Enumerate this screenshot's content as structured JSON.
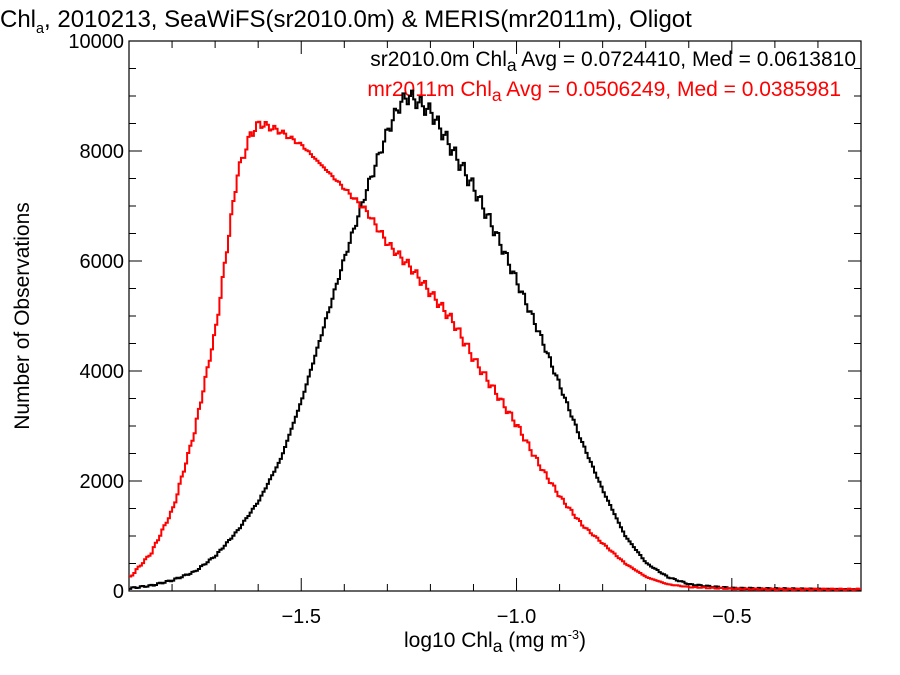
{
  "title": {
    "prefix": "Chl",
    "sub": "a",
    "rest": ", 2010213, SeaWiFS(sr2010.0m) & MERIS(mr2011m), Oligot"
  },
  "axes": {
    "ylabel": "Number of Observations",
    "xlabel_prefix": "log10 Chl",
    "xlabel_sub": "a",
    "xlabel_units_pre": " (mg m",
    "xlabel_units_sup": "-3",
    "xlabel_units_post": ")"
  },
  "legend": [
    {
      "pre": "sr2010.0m Chl",
      "sub": "a",
      "post": " Avg = 0.0724410, Med = 0.0613810",
      "color": "#000000"
    },
    {
      "pre": "mr2011m Chl",
      "sub": "a",
      "post": " Avg = 0.0506249, Med = 0.0385981",
      "color": "#ff0000"
    }
  ],
  "chart_data": {
    "type": "line",
    "style": "histogram-step",
    "xlim": [
      -1.9,
      -0.2
    ],
    "ylim": [
      0,
      10000
    ],
    "xticks": [
      -1.5,
      -1.0,
      -0.5
    ],
    "xtick_labels": [
      "−1.5",
      "−1.0",
      "−0.5"
    ],
    "yticks": [
      0,
      2000,
      4000,
      6000,
      8000,
      10000
    ],
    "ytick_labels": [
      "0",
      "2000",
      "4000",
      "6000",
      "8000",
      "10000"
    ],
    "series": [
      {
        "name": "sr2010.0m",
        "color": "#000000",
        "x": [
          -1.9,
          -1.85,
          -1.8,
          -1.75,
          -1.7,
          -1.65,
          -1.6,
          -1.55,
          -1.5,
          -1.45,
          -1.4,
          -1.35,
          -1.3,
          -1.27,
          -1.25,
          -1.2,
          -1.15,
          -1.1,
          -1.05,
          -1.0,
          -0.95,
          -0.9,
          -0.85,
          -0.8,
          -0.75,
          -0.7,
          -0.65,
          -0.6,
          -0.55,
          -0.5,
          -0.4,
          -0.3,
          -0.2
        ],
        "y": [
          50,
          100,
          200,
          350,
          650,
          1100,
          1650,
          2400,
          3500,
          4800,
          6100,
          7300,
          8400,
          8900,
          9000,
          8700,
          8000,
          7300,
          6500,
          5600,
          4700,
          3700,
          2700,
          1800,
          1000,
          500,
          250,
          120,
          80,
          50,
          40,
          30,
          20
        ]
      },
      {
        "name": "mr2011m",
        "color": "#ff0000",
        "x": [
          -1.9,
          -1.85,
          -1.8,
          -1.75,
          -1.7,
          -1.67,
          -1.65,
          -1.62,
          -1.6,
          -1.58,
          -1.55,
          -1.5,
          -1.45,
          -1.4,
          -1.35,
          -1.3,
          -1.25,
          -1.2,
          -1.15,
          -1.1,
          -1.05,
          -1.0,
          -0.95,
          -0.9,
          -0.85,
          -0.8,
          -0.75,
          -0.7,
          -0.65,
          -0.6,
          -0.5,
          -0.4,
          -0.3,
          -0.2
        ],
        "y": [
          250,
          700,
          1500,
          2900,
          4800,
          6500,
          7600,
          8300,
          8500,
          8450,
          8350,
          8100,
          7700,
          7300,
          6900,
          6300,
          5900,
          5400,
          4900,
          4200,
          3600,
          3000,
          2300,
          1700,
          1200,
          850,
          500,
          250,
          120,
          70,
          40,
          30,
          30,
          30
        ]
      }
    ]
  }
}
